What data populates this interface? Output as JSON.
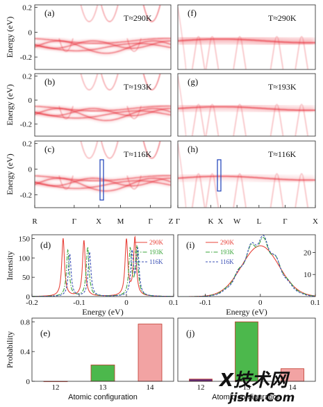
{
  "chart_data": [
    {
      "type": "heatmap",
      "panel": "(a)",
      "temperature": "T≈290K",
      "ylabel": "Energy (eV)",
      "yticks": [
        "0.2",
        "0",
        "-0.2"
      ],
      "ylim": [
        -0.3,
        0.22
      ]
    },
    {
      "type": "heatmap",
      "panel": "(b)",
      "temperature": "T≈193K",
      "ylabel": "Energy (eV)",
      "yticks": [
        "0.2",
        "0",
        "-0.2"
      ],
      "ylim": [
        -0.3,
        0.22
      ]
    },
    {
      "type": "heatmap",
      "panel": "(c)",
      "temperature": "T≈116K",
      "ylabel": "Energy (eV)",
      "yticks": [
        "0.2",
        "0",
        "-0.2"
      ],
      "ylim": [
        -0.3,
        0.22
      ],
      "xticks": [
        "R",
        "Γ",
        "X",
        "M",
        "Γ",
        "Z"
      ]
    },
    {
      "type": "heatmap",
      "panel": "(f)",
      "temperature": "T≈290K",
      "ylim": [
        -0.3,
        0.22
      ]
    },
    {
      "type": "heatmap",
      "panel": "(g)",
      "temperature": "T≈193K",
      "ylim": [
        -0.3,
        0.22
      ]
    },
    {
      "type": "heatmap",
      "panel": "(h)",
      "temperature": "T≈116K",
      "ylim": [
        -0.3,
        0.22
      ],
      "xticks": [
        "Γ",
        "K",
        "X",
        "W",
        "L",
        "Γ",
        "X"
      ]
    },
    {
      "type": "line",
      "panel": "(d)",
      "xlabel": "Energy (eV)",
      "ylabel": "Intensity",
      "xlim": [
        -0.2,
        0.1
      ],
      "ylim": [
        0,
        160
      ],
      "xticks": [
        "-0.2",
        "-0.1",
        "0",
        "0.1"
      ],
      "yticks": [
        "0",
        "50",
        "100",
        "150"
      ],
      "legend_position": "right",
      "series": [
        {
          "name": "290K",
          "color": "#e8433a",
          "style": "solid",
          "peaks": [
            [
              -0.134,
              150
            ],
            [
              -0.09,
              145
            ],
            [
              0.0,
              145
            ],
            [
              0.018,
              150
            ]
          ]
        },
        {
          "name": "193K",
          "color": "#3aa53a",
          "style": "dashdot",
          "peaks": [
            [
              -0.124,
              120
            ],
            [
              -0.082,
              128
            ],
            [
              0.008,
              120
            ],
            [
              0.022,
              125
            ]
          ]
        },
        {
          "name": "116K",
          "color": "#3a4fb5",
          "style": "dashed",
          "peaks": [
            [
              -0.12,
              110
            ],
            [
              -0.078,
              115
            ],
            [
              0.012,
              112
            ],
            [
              0.024,
              118
            ]
          ]
        }
      ]
    },
    {
      "type": "line",
      "panel": "(i)",
      "xlabel": "Energy (eV)",
      "xlim": [
        -0.15,
        0.1
      ],
      "ylim": [
        0,
        28
      ],
      "xticks": [
        "-0.1",
        "0",
        "0.1"
      ],
      "yticks": [
        "10",
        "20"
      ],
      "legend_position": "top-left",
      "series": [
        {
          "name": "290K",
          "color": "#e8433a",
          "style": "solid",
          "center": 0.0,
          "height": 23,
          "width": 0.048
        },
        {
          "name": "193K",
          "color": "#3aa53a",
          "style": "dashdot",
          "center": 0.0,
          "height": 25,
          "width": 0.046
        },
        {
          "name": "116K",
          "color": "#3a4fb5",
          "style": "dashed",
          "center": 0.0,
          "height": 26,
          "width": 0.044
        }
      ]
    },
    {
      "type": "bar",
      "panel": "(e)",
      "xlabel": "Atomic configuration",
      "ylabel": "Probability",
      "categories": [
        "12",
        "13",
        "14"
      ],
      "values": [
        0.0,
        0.22,
        0.77
      ],
      "colors": [
        "#6a2d7a",
        "#4cb84c",
        "#f2a3a3"
      ],
      "ylim": [
        0,
        0.85
      ],
      "yticks": [
        "0",
        "0.4",
        "0.8"
      ]
    },
    {
      "type": "bar",
      "panel": "(j)",
      "xlabel": "Atomic configuration",
      "categories": [
        "12",
        "13",
        "14"
      ],
      "values": [
        0.03,
        0.8,
        0.17
      ],
      "colors": [
        "#6a2d7a",
        "#4cb84c",
        "#f2a3a3"
      ],
      "ylim": [
        0,
        0.85
      ]
    }
  ],
  "watermark": {
    "line1": "X技术网",
    "line2": "jishu.Com"
  }
}
